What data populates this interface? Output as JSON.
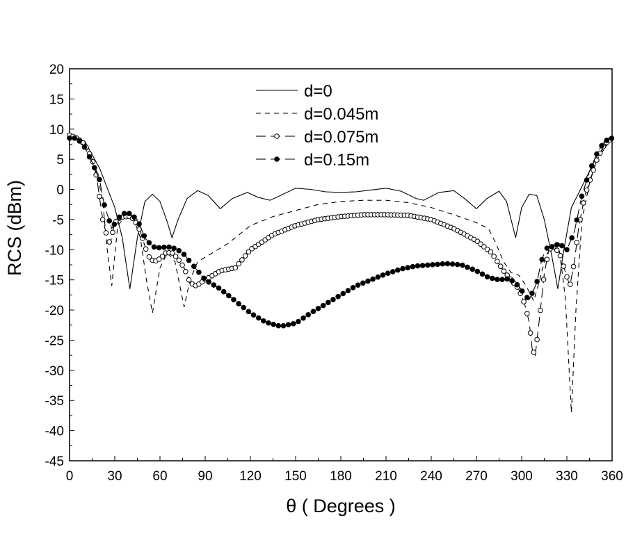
{
  "chart_data": {
    "type": "line",
    "title": "",
    "xlabel": "θ ( Degrees )",
    "ylabel": "RCS (dBm)",
    "xlim": [
      0,
      360
    ],
    "ylim": [
      -45,
      20
    ],
    "xticks": [
      0,
      30,
      60,
      90,
      120,
      150,
      180,
      210,
      240,
      270,
      300,
      330,
      360
    ],
    "yticks": [
      20,
      15,
      10,
      5,
      0,
      -5,
      -10,
      -15,
      -20,
      -25,
      -30,
      -35,
      -40,
      -45
    ],
    "grid": false,
    "legend_position": "top-center",
    "series": [
      {
        "name": "d=0",
        "style": "solid",
        "points": [
          [
            0,
            9
          ],
          [
            10,
            8
          ],
          [
            20,
            3.5
          ],
          [
            30,
            -3
          ],
          [
            35,
            -8
          ],
          [
            40,
            -16.5
          ],
          [
            45,
            -8
          ],
          [
            50,
            -2
          ],
          [
            55,
            -0.8
          ],
          [
            60,
            -2
          ],
          [
            65,
            -5.5
          ],
          [
            68,
            -8
          ],
          [
            72,
            -5
          ],
          [
            78,
            -1.5
          ],
          [
            85,
            -0.2
          ],
          [
            92,
            -1
          ],
          [
            100,
            -3.2
          ],
          [
            108,
            -1.5
          ],
          [
            118,
            -0.5
          ],
          [
            125,
            -1.3
          ],
          [
            133,
            -1.8
          ],
          [
            140,
            -1
          ],
          [
            150,
            0.2
          ],
          [
            160,
            0
          ],
          [
            170,
            -0.4
          ],
          [
            180,
            -0.5
          ],
          [
            190,
            -0.4
          ],
          [
            200,
            -0.1
          ],
          [
            210,
            0.2
          ],
          [
            220,
            -0.3
          ],
          [
            230,
            -1.5
          ],
          [
            235,
            -1.8
          ],
          [
            245,
            -0.5
          ],
          [
            255,
            -0.2
          ],
          [
            262,
            -1.5
          ],
          [
            270,
            -3.2
          ],
          [
            277,
            -1.5
          ],
          [
            285,
            -0.3
          ],
          [
            290,
            -2
          ],
          [
            296,
            -8
          ],
          [
            300,
            -3
          ],
          [
            305,
            -0.8
          ],
          [
            310,
            -1
          ],
          [
            315,
            -5
          ],
          [
            320,
            -11
          ],
          [
            324,
            -16.5
          ],
          [
            328,
            -10
          ],
          [
            333,
            -3
          ],
          [
            340,
            0.5
          ],
          [
            350,
            5.5
          ],
          [
            360,
            8.5
          ]
        ]
      },
      {
        "name": "d=0.045m",
        "style": "dashed",
        "points": [
          [
            0,
            9
          ],
          [
            10,
            8
          ],
          [
            18,
            3
          ],
          [
            22,
            -2
          ],
          [
            25,
            -10
          ],
          [
            28,
            -16
          ],
          [
            32,
            -6
          ],
          [
            37,
            -4.5
          ],
          [
            42,
            -4.5
          ],
          [
            47,
            -8
          ],
          [
            51,
            -15
          ],
          [
            55,
            -20.5
          ],
          [
            60,
            -13
          ],
          [
            65,
            -10.5
          ],
          [
            70,
            -12
          ],
          [
            76,
            -19.5
          ],
          [
            80,
            -15
          ],
          [
            85,
            -12
          ],
          [
            95,
            -10.5
          ],
          [
            105,
            -9
          ],
          [
            120,
            -6
          ],
          [
            135,
            -4.5
          ],
          [
            150,
            -3.5
          ],
          [
            165,
            -2.5
          ],
          [
            180,
            -2
          ],
          [
            195,
            -1.8
          ],
          [
            210,
            -1.8
          ],
          [
            225,
            -2.2
          ],
          [
            240,
            -3
          ],
          [
            255,
            -4.2
          ],
          [
            270,
            -5.5
          ],
          [
            278,
            -6.5
          ],
          [
            283,
            -9
          ],
          [
            288,
            -12
          ],
          [
            293,
            -13.8
          ],
          [
            298,
            -14.2
          ],
          [
            303,
            -16
          ],
          [
            308,
            -18.5
          ],
          [
            312,
            -15
          ],
          [
            316,
            -11
          ],
          [
            320,
            -9.5
          ],
          [
            325,
            -10
          ],
          [
            329,
            -18
          ],
          [
            333,
            -37
          ],
          [
            336,
            -20
          ],
          [
            340,
            -5
          ],
          [
            345,
            1
          ],
          [
            350,
            5
          ],
          [
            360,
            8.5
          ]
        ]
      },
      {
        "name": "d=0.075m",
        "style": "dash-open-circle",
        "points": [
          [
            0,
            9
          ],
          [
            5,
            8.5
          ],
          [
            10,
            7.5
          ],
          [
            15,
            5
          ],
          [
            18,
            2
          ],
          [
            20,
            -1.5
          ],
          [
            22,
            -5
          ],
          [
            25,
            -8
          ],
          [
            27,
            -9
          ],
          [
            30,
            -5.5
          ],
          [
            33,
            -4.8
          ],
          [
            36,
            -4.5
          ],
          [
            40,
            -4.5
          ],
          [
            43,
            -5
          ],
          [
            47,
            -7
          ],
          [
            52,
            -11
          ],
          [
            56,
            -12
          ],
          [
            60,
            -11.5
          ],
          [
            64,
            -10.5
          ],
          [
            68,
            -10.5
          ],
          [
            72,
            -11.5
          ],
          [
            76,
            -13
          ],
          [
            80,
            -15.5
          ],
          [
            84,
            -16
          ],
          [
            90,
            -15
          ],
          [
            100,
            -13.5
          ],
          [
            110,
            -13
          ],
          [
            120,
            -10
          ],
          [
            135,
            -7.5
          ],
          [
            150,
            -6
          ],
          [
            165,
            -5
          ],
          [
            180,
            -4.5
          ],
          [
            195,
            -4.2
          ],
          [
            210,
            -4.2
          ],
          [
            225,
            -4.3
          ],
          [
            240,
            -5
          ],
          [
            255,
            -6.5
          ],
          [
            270,
            -8.5
          ],
          [
            280,
            -10.5
          ],
          [
            288,
            -13.5
          ],
          [
            293,
            -15
          ],
          [
            298,
            -16.5
          ],
          [
            302,
            -19
          ],
          [
            305,
            -22
          ],
          [
            307,
            -26.5
          ],
          [
            309,
            -27.5
          ],
          [
            312,
            -21
          ],
          [
            315,
            -14
          ],
          [
            318,
            -10
          ],
          [
            321,
            -9.5
          ],
          [
            325,
            -10.5
          ],
          [
            330,
            -14.5
          ],
          [
            332,
            -16
          ],
          [
            335,
            -12
          ],
          [
            338,
            -6
          ],
          [
            342,
            -1
          ],
          [
            346,
            2
          ],
          [
            350,
            5
          ],
          [
            355,
            7.5
          ],
          [
            360,
            8.5
          ]
        ]
      },
      {
        "name": "d=0.15m",
        "style": "dash-filled-circle",
        "points": [
          [
            0,
            8.5
          ],
          [
            5,
            8.5
          ],
          [
            10,
            7
          ],
          [
            15,
            4.5
          ],
          [
            20,
            1.5
          ],
          [
            23,
            -2.5
          ],
          [
            28,
            -6.5
          ],
          [
            32,
            -4.8
          ],
          [
            36,
            -4
          ],
          [
            40,
            -4
          ],
          [
            45,
            -5
          ],
          [
            50,
            -8
          ],
          [
            55,
            -9.5
          ],
          [
            60,
            -9.7
          ],
          [
            65,
            -9.5
          ],
          [
            70,
            -9.8
          ],
          [
            75,
            -10.5
          ],
          [
            80,
            -12
          ],
          [
            85,
            -13.5
          ],
          [
            90,
            -15
          ],
          [
            100,
            -16.5
          ],
          [
            110,
            -18.5
          ],
          [
            120,
            -20.5
          ],
          [
            130,
            -22
          ],
          [
            140,
            -22.7
          ],
          [
            150,
            -22.2
          ],
          [
            160,
            -20.5
          ],
          [
            170,
            -19
          ],
          [
            180,
            -17.5
          ],
          [
            190,
            -16
          ],
          [
            200,
            -15
          ],
          [
            210,
            -14
          ],
          [
            220,
            -13.2
          ],
          [
            230,
            -12.7
          ],
          [
            240,
            -12.5
          ],
          [
            250,
            -12.3
          ],
          [
            260,
            -12.5
          ],
          [
            270,
            -13.5
          ],
          [
            278,
            -14.6
          ],
          [
            285,
            -15
          ],
          [
            292,
            -14.8
          ],
          [
            298,
            -16
          ],
          [
            302,
            -17.5
          ],
          [
            305,
            -18.3
          ],
          [
            310,
            -15.5
          ],
          [
            313,
            -12
          ],
          [
            316,
            -9.8
          ],
          [
            320,
            -9.5
          ],
          [
            325,
            -9
          ],
          [
            330,
            -10
          ],
          [
            335,
            -7
          ],
          [
            340,
            -1
          ],
          [
            345,
            3
          ],
          [
            350,
            6
          ],
          [
            355,
            8
          ],
          [
            360,
            8.5
          ]
        ]
      }
    ]
  }
}
